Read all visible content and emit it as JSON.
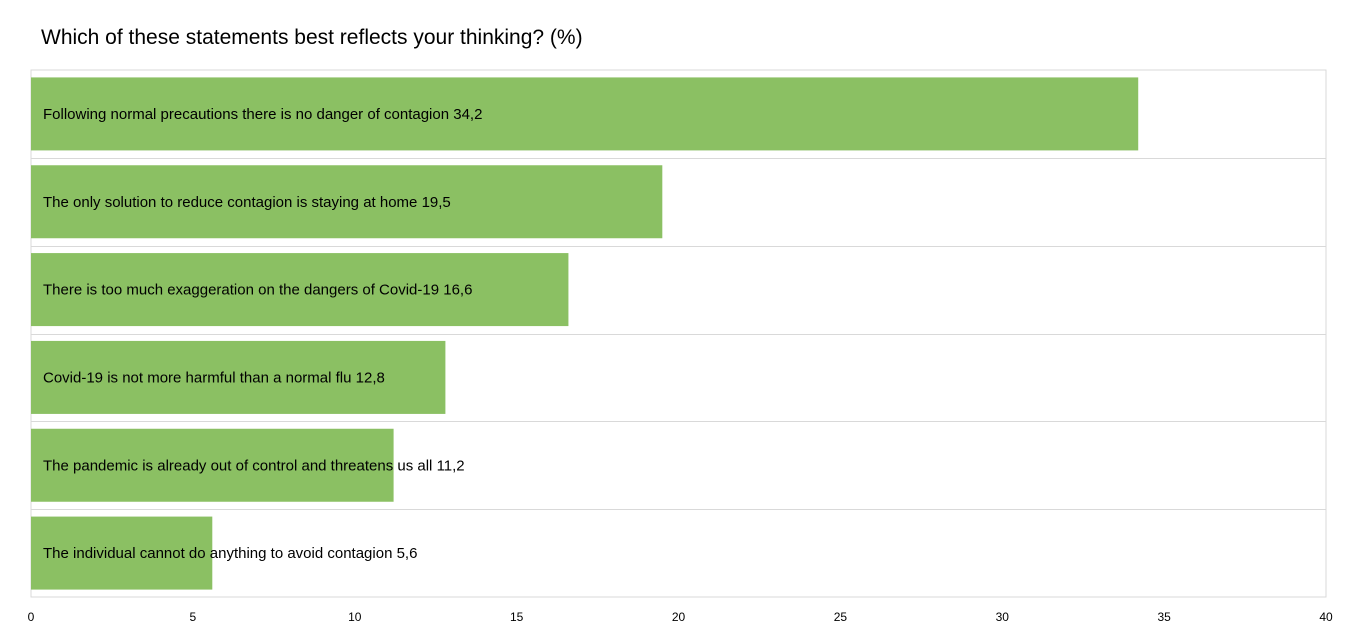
{
  "chart_data": {
    "type": "bar",
    "orientation": "horizontal",
    "title": "Which of these statements best reflects your thinking? (%)",
    "xlabel": "",
    "ylabel": "",
    "xlim": [
      0,
      40
    ],
    "x_ticks": [
      "0",
      "5",
      "10",
      "15",
      "20",
      "25",
      "30",
      "35",
      "40"
    ],
    "grid": true,
    "legend": "none",
    "bar_color": "#8BC063",
    "categories": [
      "Following normal precautions there is no danger of contagion",
      "The only solution to reduce contagion is staying at home ",
      "There is too much exaggeration on the dangers of Covid-19",
      "Covid-19 is not more harmful than a normal flu",
      "The pandemic is already out of control and threatens us all",
      "The individual cannot do anything to avoid contagion"
    ],
    "values": [
      34.2,
      19.5,
      16.6,
      12.8,
      11.2,
      5.6
    ],
    "value_labels": [
      "34,2",
      "19,5",
      "16,6",
      "12,8",
      "11,2",
      "5,6"
    ]
  }
}
